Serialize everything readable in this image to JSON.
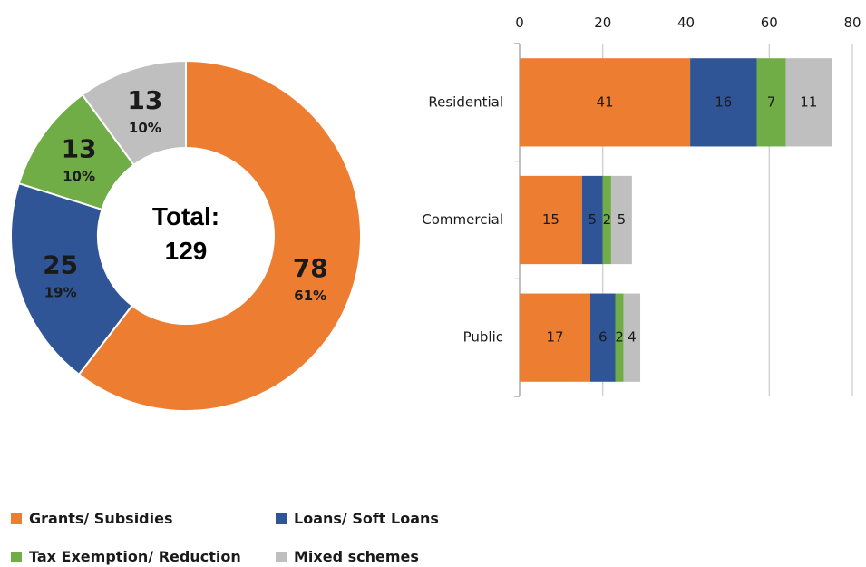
{
  "chart_data": [
    {
      "type": "pie",
      "subtype": "donut",
      "center_label": [
        "Total:",
        "129"
      ],
      "slices": [
        {
          "name": "Grants/ Subsidies",
          "value": 78,
          "percent": "61%",
          "color": "#ED7D31"
        },
        {
          "name": "Loans/ Soft Loans",
          "value": 25,
          "percent": "19%",
          "color": "#2F5597"
        },
        {
          "name": "Tax Exemption/ Reduction",
          "value": 13,
          "percent": "10%",
          "color": "#70AD47"
        },
        {
          "name": "Mixed schemes",
          "value": 13,
          "percent": "10%",
          "color": "#BFBFBF"
        }
      ]
    },
    {
      "type": "bar",
      "orientation": "horizontal",
      "stacked": true,
      "categories": [
        "Residential",
        "Commercial",
        "Public"
      ],
      "series": [
        {
          "name": "Grants/ Subsidies",
          "color": "#ED7D31",
          "values": [
            41,
            15,
            17
          ]
        },
        {
          "name": "Loans/ Soft Loans",
          "color": "#2F5597",
          "values": [
            16,
            5,
            6
          ]
        },
        {
          "name": "Tax Exemption/ Reduction",
          "color": "#70AD47",
          "values": [
            7,
            2,
            2
          ]
        },
        {
          "name": "Mixed schemes",
          "color": "#BFBFBF",
          "values": [
            11,
            5,
            4
          ]
        }
      ],
      "xlim": [
        0,
        80
      ],
      "xticks": [
        "0",
        "20",
        "40",
        "60",
        "80"
      ],
      "xaxis_position": "top",
      "grid": true
    }
  ],
  "legend": {
    "placement": "bottom-left",
    "items": [
      {
        "label": "Grants/ Subsidies",
        "color": "#ED7D31"
      },
      {
        "label": "Loans/ Soft Loans",
        "color": "#2F5597"
      },
      {
        "label": "Tax Exemption/ Reduction",
        "color": "#70AD47"
      },
      {
        "label": "Mixed schemes",
        "color": "#BFBFBF"
      }
    ]
  }
}
